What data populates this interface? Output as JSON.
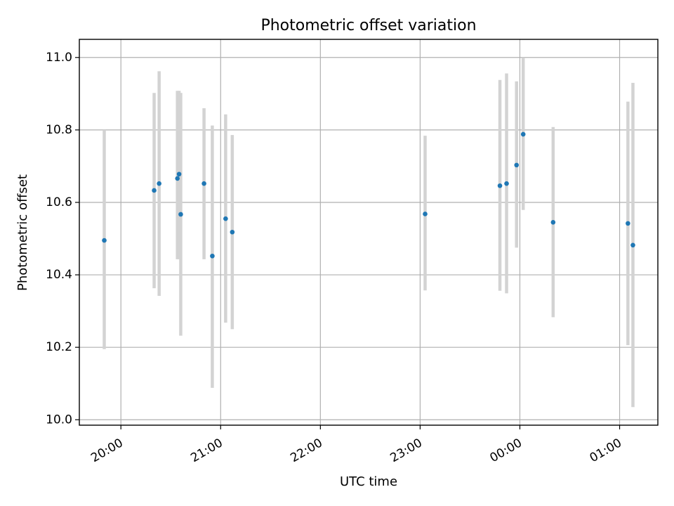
{
  "chart_data": {
    "type": "scatter",
    "title": "Photometric offset variation",
    "xlabel": "UTC time",
    "ylabel": "Photometric offset",
    "x_unit": "time-of-day",
    "xlim": [
      "19:35",
      "25:23"
    ],
    "ylim": [
      9.985,
      11.05
    ],
    "xticks": [
      {
        "value": "20:00",
        "label": "20:00"
      },
      {
        "value": "21:00",
        "label": "21:00"
      },
      {
        "value": "22:00",
        "label": "22:00"
      },
      {
        "value": "23:00",
        "label": "23:00"
      },
      {
        "value": "24:00",
        "label": "00:00"
      },
      {
        "value": "25:00",
        "label": "01:00"
      }
    ],
    "yticks": [
      10.0,
      10.2,
      10.4,
      10.6,
      10.8,
      11.0
    ],
    "ytick_labels": [
      "10.0",
      "10.2",
      "10.4",
      "10.6",
      "10.8",
      "11.0"
    ],
    "grid": true,
    "colors": {
      "points": "#1f77b4",
      "errorbars": "#d3d3d3"
    },
    "points": [
      {
        "x": "19:50",
        "y": 10.495,
        "ylo": 10.195,
        "yhi": 10.8
      },
      {
        "x": "20:20",
        "y": 10.633,
        "ylo": 10.363,
        "yhi": 10.902
      },
      {
        "x": "20:23",
        "y": 10.652,
        "ylo": 10.342,
        "yhi": 10.962
      },
      {
        "x": "20:34",
        "y": 10.666,
        "ylo": 10.443,
        "yhi": 10.908
      },
      {
        "x": "20:35",
        "y": 10.678,
        "ylo": 10.443,
        "yhi": 10.908
      },
      {
        "x": "20:36",
        "y": 10.567,
        "ylo": 10.232,
        "yhi": 10.902
      },
      {
        "x": "20:50",
        "y": 10.652,
        "ylo": 10.443,
        "yhi": 10.86
      },
      {
        "x": "20:55",
        "y": 10.452,
        "ylo": 10.088,
        "yhi": 10.812
      },
      {
        "x": "21:03",
        "y": 10.555,
        "ylo": 10.268,
        "yhi": 10.843
      },
      {
        "x": "21:07",
        "y": 10.518,
        "ylo": 10.25,
        "yhi": 10.786
      },
      {
        "x": "23:03",
        "y": 10.568,
        "ylo": 10.357,
        "yhi": 10.784
      },
      {
        "x": "23:48",
        "y": 10.646,
        "ylo": 10.356,
        "yhi": 10.938
      },
      {
        "x": "23:52",
        "y": 10.652,
        "ylo": 10.349,
        "yhi": 10.956
      },
      {
        "x": "23:58",
        "y": 10.703,
        "ylo": 10.475,
        "yhi": 10.934
      },
      {
        "x": "24:02",
        "y": 10.788,
        "ylo": 10.579,
        "yhi": 11.0
      },
      {
        "x": "24:20",
        "y": 10.545,
        "ylo": 10.283,
        "yhi": 10.808
      },
      {
        "x": "25:05",
        "y": 10.542,
        "ylo": 10.206,
        "yhi": 10.878
      },
      {
        "x": "25:08",
        "y": 10.482,
        "ylo": 10.035,
        "yhi": 10.93
      }
    ]
  }
}
